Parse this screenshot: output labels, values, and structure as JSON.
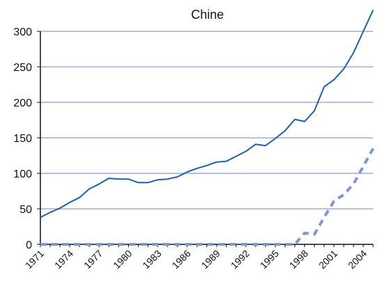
{
  "chart_data": {
    "type": "line",
    "title": "Chine",
    "xlabel": "",
    "ylabel": "",
    "xlim": [
      1971,
      2005
    ],
    "ylim": [
      0,
      300
    ],
    "yticks": [
      0,
      50,
      100,
      150,
      200,
      250,
      300
    ],
    "xticks": [
      1971,
      1974,
      1977,
      1980,
      1983,
      1986,
      1989,
      1992,
      1995,
      1998,
      2001,
      2004
    ],
    "grid": true,
    "legend": "none",
    "series": [
      {
        "style": "solid",
        "color": "#1f5fa6",
        "x": [
          1971,
          1972,
          1973,
          1974,
          1975,
          1976,
          1977,
          1978,
          1979,
          1980,
          1981,
          1982,
          1983,
          1984,
          1985,
          1986,
          1987,
          1988,
          1989,
          1990,
          1991,
          1992,
          1993,
          1994,
          1995,
          1996,
          1997,
          1998,
          1999,
          2000,
          2001,
          2002,
          2003,
          2004,
          2005
        ],
        "values": [
          38,
          45,
          51,
          59,
          66,
          78,
          85,
          93,
          92,
          92,
          87,
          87,
          91,
          92,
          95,
          102,
          107,
          111,
          116,
          117,
          124,
          131,
          141,
          139,
          149,
          160,
          176,
          173,
          188,
          222,
          232,
          247,
          270,
          300,
          330
        ]
      },
      {
        "style": "dashed",
        "color": "#7f97d0",
        "x": [
          1971,
          1972,
          1973,
          1974,
          1975,
          1976,
          1977,
          1978,
          1979,
          1980,
          1981,
          1982,
          1983,
          1984,
          1985,
          1986,
          1987,
          1988,
          1989,
          1990,
          1991,
          1992,
          1993,
          1994,
          1995,
          1996,
          1997,
          1998,
          1999,
          2000,
          2001,
          2002,
          2003,
          2004,
          2005
        ],
        "values": [
          0,
          0,
          0,
          0,
          0,
          0,
          0,
          0,
          0,
          0,
          0,
          0,
          0,
          0,
          0,
          0,
          0,
          0,
          0,
          0,
          0,
          0,
          0,
          0,
          0,
          0,
          0,
          16,
          14,
          38,
          61,
          70,
          85,
          110,
          135
        ]
      }
    ]
  },
  "colors": {
    "grid": "#b8c1e0",
    "axis": "#111111"
  }
}
